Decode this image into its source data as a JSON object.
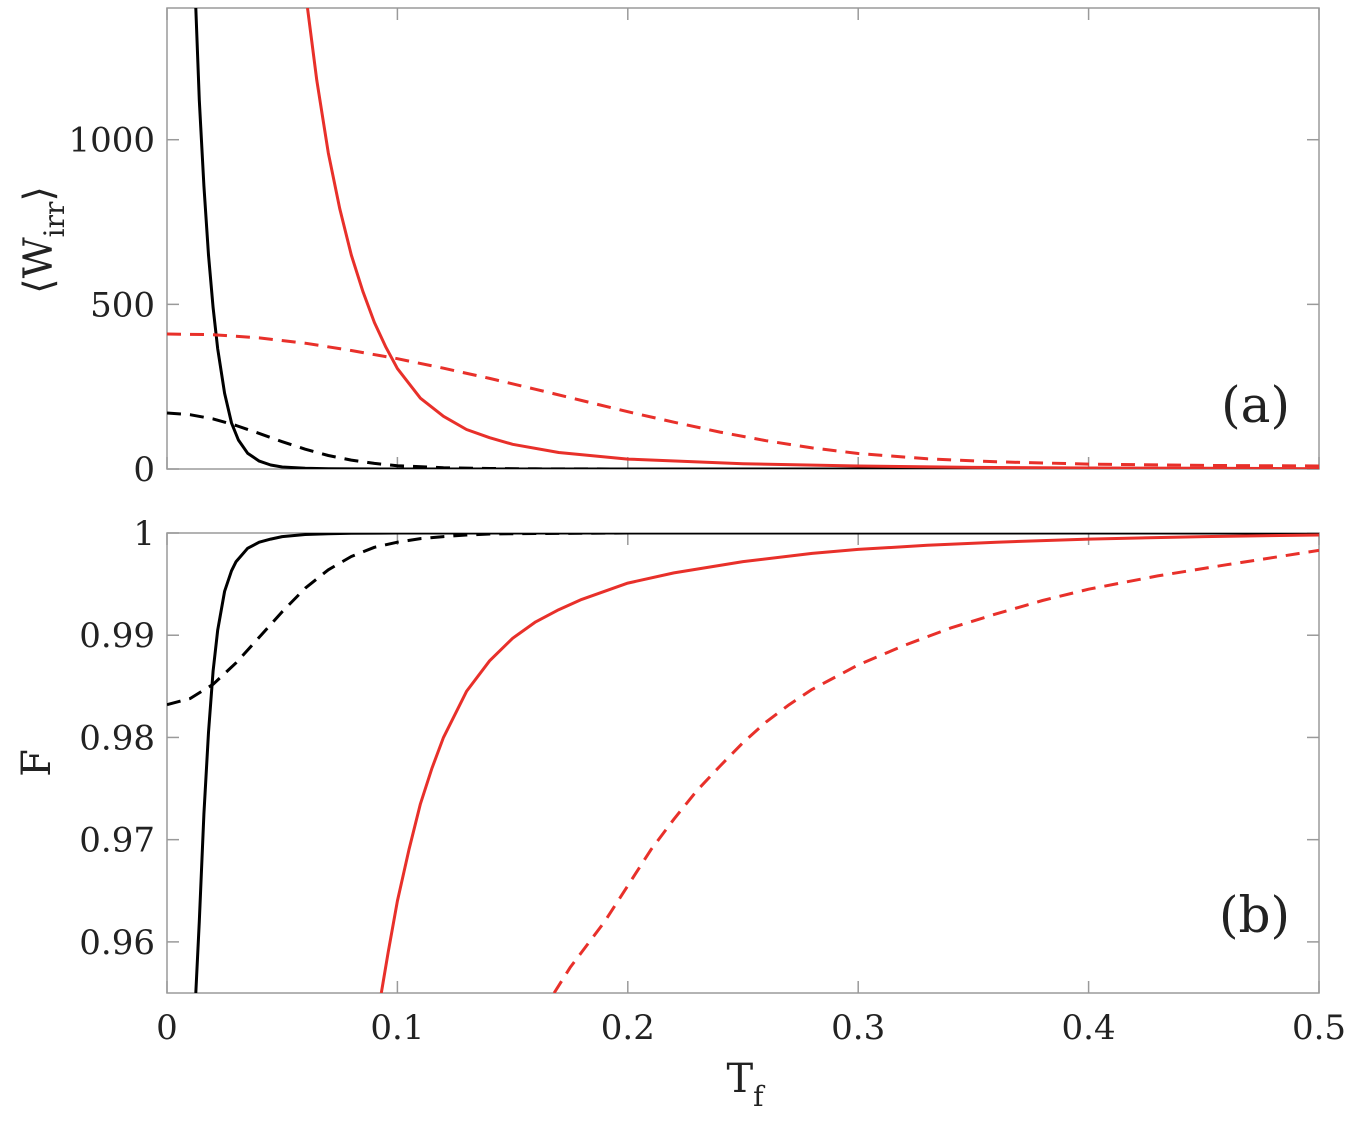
{
  "chart_data": [
    {
      "type": "line",
      "panel": "top",
      "panel_label": "(a)",
      "ylabel": "⟨W",
      "ylabel_sub": "irr",
      "ylabel_close": "⟩",
      "xlim": [
        0,
        0.5
      ],
      "ylim": [
        0,
        1400
      ],
      "xticks": [
        0,
        0.1,
        0.2,
        0.3,
        0.4,
        0.5
      ],
      "yticks": [
        0,
        500,
        1000
      ],
      "ytick_labels": [
        "0",
        "500",
        "1000"
      ],
      "series": [
        {
          "name": "black-solid",
          "color": "#000000",
          "dash": "solid",
          "x": [
            0.0125,
            0.014,
            0.016,
            0.018,
            0.02,
            0.022,
            0.025,
            0.028,
            0.031,
            0.035,
            0.04,
            0.045,
            0.05,
            0.06,
            0.07,
            0.08,
            0.1,
            0.15,
            0.2,
            0.3,
            0.4,
            0.5
          ],
          "y": [
            1400,
            1120,
            860,
            650,
            490,
            365,
            230,
            140,
            88,
            48,
            24,
            12,
            6,
            2,
            0.5,
            0.2,
            0,
            0,
            0,
            0,
            0,
            0
          ]
        },
        {
          "name": "black-dashed",
          "color": "#000000",
          "dash": "dashed",
          "x": [
            0,
            0.01,
            0.02,
            0.03,
            0.04,
            0.05,
            0.06,
            0.07,
            0.08,
            0.09,
            0.1,
            0.12,
            0.14,
            0.16,
            0.2,
            0.3,
            0.4,
            0.5
          ],
          "y": [
            170,
            165,
            152,
            132,
            108,
            83,
            60,
            41,
            27,
            17,
            10,
            4,
            1.5,
            0.5,
            0,
            0,
            0,
            0
          ]
        },
        {
          "name": "red-solid",
          "color": "#e8302a",
          "dash": "solid",
          "x": [
            0.061,
            0.065,
            0.07,
            0.075,
            0.08,
            0.085,
            0.09,
            0.095,
            0.1,
            0.11,
            0.12,
            0.13,
            0.14,
            0.15,
            0.17,
            0.2,
            0.25,
            0.3,
            0.35,
            0.4,
            0.45,
            0.5
          ],
          "y": [
            1400,
            1180,
            960,
            790,
            650,
            540,
            445,
            370,
            305,
            215,
            160,
            120,
            95,
            75,
            50,
            30,
            16,
            9,
            5,
            3,
            2,
            1
          ]
        },
        {
          "name": "red-dashed",
          "color": "#e8302a",
          "dash": "dashed",
          "x": [
            0,
            0.02,
            0.04,
            0.06,
            0.08,
            0.1,
            0.12,
            0.14,
            0.16,
            0.18,
            0.2,
            0.22,
            0.24,
            0.26,
            0.28,
            0.3,
            0.33,
            0.36,
            0.4,
            0.45,
            0.5
          ],
          "y": [
            410,
            408,
            398,
            382,
            360,
            335,
            306,
            275,
            242,
            208,
            174,
            142,
            112,
            86,
            64,
            47,
            31,
            22,
            15,
            11,
            9
          ]
        }
      ]
    },
    {
      "type": "line",
      "panel": "bottom",
      "panel_label": "(b)",
      "xlabel": "T",
      "xlabel_sub": "f",
      "ylabel": "F",
      "xlim": [
        0,
        0.5
      ],
      "ylim": [
        0.955,
        1.0
      ],
      "xticks": [
        0,
        0.1,
        0.2,
        0.3,
        0.4,
        0.5
      ],
      "xtick_labels": [
        "0",
        "0.1",
        "0.2",
        "0.3",
        "0.4",
        "0.5"
      ],
      "yticks": [
        0.96,
        0.97,
        0.98,
        0.99,
        1.0
      ],
      "ytick_labels": [
        "0.96",
        "0.97",
        "0.98",
        "0.99",
        "1"
      ],
      "series": [
        {
          "name": "black-solid",
          "color": "#000000",
          "dash": "solid",
          "x": [
            0.0125,
            0.014,
            0.016,
            0.018,
            0.02,
            0.022,
            0.025,
            0.028,
            0.03,
            0.035,
            0.04,
            0.045,
            0.05,
            0.06,
            0.07,
            0.08,
            0.1,
            0.13,
            0.2,
            0.3,
            0.4,
            0.5
          ],
          "y": [
            0.955,
            0.962,
            0.9725,
            0.9805,
            0.9865,
            0.9905,
            0.9943,
            0.9963,
            0.9972,
            0.9985,
            0.9991,
            0.9994,
            0.99965,
            0.99985,
            0.99993,
            0.99997,
            1.0,
            1.0,
            1.0,
            1.0,
            1.0,
            1.0
          ]
        },
        {
          "name": "black-dashed",
          "color": "#000000",
          "dash": "dashed",
          "x": [
            0,
            0.01,
            0.02,
            0.03,
            0.04,
            0.05,
            0.06,
            0.07,
            0.08,
            0.09,
            0.1,
            0.11,
            0.12,
            0.13,
            0.14,
            0.16,
            0.2,
            0.3,
            0.4,
            0.5
          ],
          "y": [
            0.9832,
            0.9838,
            0.9852,
            0.9873,
            0.9898,
            0.9923,
            0.9946,
            0.9964,
            0.9977,
            0.9986,
            0.9991,
            0.99945,
            0.99965,
            0.9998,
            0.9999,
            0.99995,
            1.0,
            1.0,
            1.0,
            1.0
          ]
        },
        {
          "name": "red-solid",
          "color": "#e8302a",
          "dash": "solid",
          "x": [
            0.093,
            0.096,
            0.1,
            0.105,
            0.11,
            0.115,
            0.12,
            0.13,
            0.14,
            0.15,
            0.16,
            0.17,
            0.18,
            0.2,
            0.22,
            0.25,
            0.28,
            0.3,
            0.33,
            0.36,
            0.4,
            0.45,
            0.5
          ],
          "y": [
            0.955,
            0.959,
            0.964,
            0.969,
            0.9735,
            0.977,
            0.98,
            0.9845,
            0.9875,
            0.9897,
            0.9913,
            0.9925,
            0.9935,
            0.9951,
            0.9961,
            0.9972,
            0.998,
            0.9984,
            0.9988,
            0.9991,
            0.9994,
            0.99965,
            0.9998
          ]
        },
        {
          "name": "red-dashed",
          "color": "#e8302a",
          "dash": "dashed",
          "x": [
            0.168,
            0.175,
            0.18,
            0.19,
            0.2,
            0.21,
            0.22,
            0.23,
            0.24,
            0.25,
            0.26,
            0.27,
            0.28,
            0.3,
            0.32,
            0.34,
            0.36,
            0.38,
            0.4,
            0.43,
            0.46,
            0.5
          ],
          "y": [
            0.955,
            0.9575,
            0.959,
            0.962,
            0.9655,
            0.969,
            0.972,
            0.9748,
            0.9772,
            0.9795,
            0.9815,
            0.9832,
            0.9847,
            0.9871,
            0.989,
            0.9907,
            0.9921,
            0.9934,
            0.9945,
            0.9958,
            0.9969,
            0.9983
          ]
        }
      ]
    }
  ]
}
